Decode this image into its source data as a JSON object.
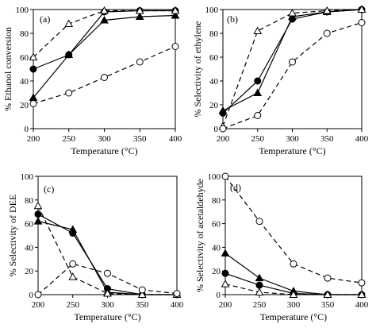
{
  "chart_data": [
    {
      "type": "line",
      "panel_label": "(a)",
      "xlabel": "Temperature (°C)",
      "ylabel": "% Ethanol conversion",
      "x": [
        200,
        250,
        300,
        350,
        400
      ],
      "xticks": [
        "200",
        "250",
        "300",
        "350",
        "400"
      ],
      "yticks": [
        "0",
        "20",
        "40",
        "60",
        "80",
        "100"
      ],
      "xlim": [
        200,
        400
      ],
      "ylim": [
        0,
        100
      ],
      "series": [
        {
          "marker": "filled-circle",
          "dash": "solid",
          "values": [
            50,
            62,
            98,
            99,
            99
          ]
        },
        {
          "marker": "filled-triangle",
          "dash": "solid",
          "values": [
            26,
            62,
            91,
            94,
            95
          ]
        },
        {
          "marker": "open-triangle",
          "dash": "dashed",
          "values": [
            60,
            88,
            99,
            99,
            99
          ]
        },
        {
          "marker": "open-circle",
          "dash": "dashed",
          "values": [
            21,
            30,
            43,
            56,
            69
          ]
        }
      ]
    },
    {
      "type": "line",
      "panel_label": "(b)",
      "xlabel": "Temperature (°C)",
      "ylabel": "% Selectivity of ethylene",
      "x": [
        200,
        250,
        300,
        350,
        400
      ],
      "xticks": [
        "200",
        "250",
        "300",
        "350",
        "400"
      ],
      "yticks": [
        "0",
        "20",
        "40",
        "60",
        "80",
        "100"
      ],
      "xlim": [
        200,
        400
      ],
      "ylim": [
        0,
        100
      ],
      "series": [
        {
          "marker": "filled-circle",
          "dash": "solid",
          "values": [
            13,
            40,
            92,
            98,
            100
          ]
        },
        {
          "marker": "filled-triangle",
          "dash": "solid",
          "values": [
            15,
            30,
            94,
            98,
            100
          ]
        },
        {
          "marker": "open-triangle",
          "dash": "dashed",
          "values": [
            2,
            82,
            97,
            99,
            100
          ]
        },
        {
          "marker": "open-circle",
          "dash": "dashed",
          "values": [
            0,
            11,
            56,
            80,
            89
          ]
        }
      ]
    },
    {
      "type": "line",
      "panel_label": "(c)",
      "xlabel": "Temperature (°C)",
      "ylabel": "% Selectivity of DEE",
      "x": [
        200,
        250,
        300,
        350,
        400
      ],
      "xticks": [
        "200",
        "250",
        "300",
        "350",
        "400"
      ],
      "yticks": [
        "0",
        "20",
        "40",
        "60",
        "80",
        "100"
      ],
      "xlim": [
        200,
        400
      ],
      "ylim": [
        0,
        100
      ],
      "series": [
        {
          "marker": "filled-circle",
          "dash": "solid",
          "values": [
            68,
            52,
            5,
            0,
            0
          ]
        },
        {
          "marker": "filled-triangle",
          "dash": "solid",
          "values": [
            62,
            55,
            2,
            0,
            0
          ]
        },
        {
          "marker": "open-triangle",
          "dash": "dashed",
          "values": [
            75,
            15,
            1,
            0,
            0
          ]
        },
        {
          "marker": "open-circle",
          "dash": "dashed",
          "values": [
            0,
            26,
            18,
            4,
            1
          ]
        }
      ]
    },
    {
      "type": "line",
      "panel_label": "(d)",
      "xlabel": "Temperature (°C)",
      "ylabel": "% Selectivity of acetaldehyde",
      "x": [
        200,
        250,
        300,
        350,
        400
      ],
      "xticks": [
        "200",
        "250",
        "300",
        "350",
        "400"
      ],
      "yticks": [
        "0",
        "20",
        "40",
        "60",
        "80",
        "100"
      ],
      "xlim": [
        200,
        400
      ],
      "ylim": [
        0,
        100
      ],
      "series": [
        {
          "marker": "filled-circle",
          "dash": "solid",
          "values": [
            18,
            8,
            1,
            0,
            0
          ]
        },
        {
          "marker": "filled-triangle",
          "dash": "solid",
          "values": [
            35,
            14,
            3,
            0,
            0
          ]
        },
        {
          "marker": "open-triangle",
          "dash": "dashed",
          "values": [
            9,
            2,
            0,
            0,
            0
          ]
        },
        {
          "marker": "open-circle",
          "dash": "dashed",
          "values": [
            100,
            62,
            26,
            14,
            10
          ]
        }
      ]
    }
  ]
}
